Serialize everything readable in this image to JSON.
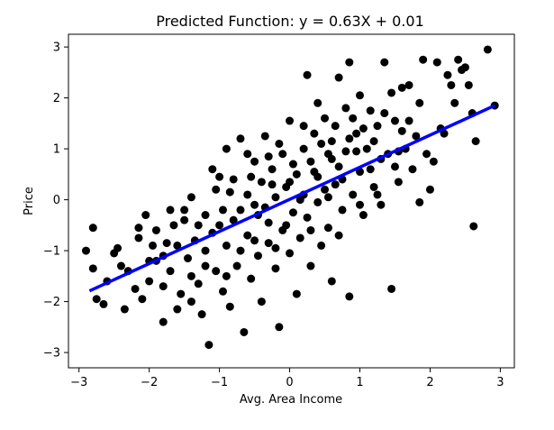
{
  "chart_data": {
    "type": "scatter",
    "title": "Predicted Function: y = 0.63X + 0.01",
    "xlabel": "Avg. Area Income",
    "ylabel": "Price",
    "xlim": [
      -3.15,
      3.2
    ],
    "ylim": [
      -3.3,
      3.25
    ],
    "xticks": [
      -3,
      -2,
      -1,
      0,
      1,
      2,
      3
    ],
    "yticks": [
      -3,
      -2,
      -1,
      0,
      1,
      2,
      3
    ],
    "grid": false,
    "colors": {
      "points": "#000000",
      "line": "#0000ff"
    },
    "regression": {
      "slope": 0.63,
      "intercept": 0.01,
      "x_range": [
        -2.85,
        2.92
      ]
    },
    "series": [
      {
        "kind": "scatter",
        "points": [
          [
            -2.9,
            -1.0
          ],
          [
            -2.8,
            -1.35
          ],
          [
            -2.8,
            -0.55
          ],
          [
            -2.75,
            -1.95
          ],
          [
            -2.65,
            -2.05
          ],
          [
            -2.6,
            -1.6
          ],
          [
            -2.5,
            -1.05
          ],
          [
            -2.45,
            -0.95
          ],
          [
            -2.35,
            -2.15
          ],
          [
            -2.3,
            -1.4
          ],
          [
            -2.2,
            -1.75
          ],
          [
            -2.15,
            -0.55
          ],
          [
            -2.15,
            -0.75
          ],
          [
            -2.1,
            -1.95
          ],
          [
            -2.05,
            -0.3
          ],
          [
            -2.0,
            -1.6
          ],
          [
            -1.95,
            -0.9
          ],
          [
            -1.9,
            -1.2
          ],
          [
            -1.9,
            -0.6
          ],
          [
            -1.8,
            -1.7
          ],
          [
            -1.8,
            -2.4
          ],
          [
            -1.75,
            -0.85
          ],
          [
            -1.7,
            -1.4
          ],
          [
            -1.65,
            -0.5
          ],
          [
            -1.6,
            -2.15
          ],
          [
            -1.55,
            -1.85
          ],
          [
            -1.5,
            -0.4
          ],
          [
            -1.45,
            -1.15
          ],
          [
            -1.4,
            -2.0
          ],
          [
            -1.4,
            0.05
          ],
          [
            -1.35,
            -0.8
          ],
          [
            -1.3,
            -1.65
          ],
          [
            -1.25,
            -2.25
          ],
          [
            -1.2,
            -0.3
          ],
          [
            -1.2,
            -1.0
          ],
          [
            -1.15,
            -2.85
          ],
          [
            -1.1,
            0.6
          ],
          [
            -1.05,
            -1.4
          ],
          [
            -1.05,
            0.2
          ],
          [
            -1.0,
            -0.5
          ],
          [
            -0.95,
            -1.8
          ],
          [
            -0.9,
            -0.9
          ],
          [
            -0.9,
            1.0
          ],
          [
            -0.85,
            -2.1
          ],
          [
            -0.8,
            0.4
          ],
          [
            -0.75,
            -1.3
          ],
          [
            -0.7,
            -0.2
          ],
          [
            -0.7,
            1.2
          ],
          [
            -0.65,
            -2.6
          ],
          [
            -0.6,
            0.1
          ],
          [
            -0.6,
            -0.7
          ],
          [
            -0.55,
            -1.55
          ],
          [
            -0.5,
            0.75
          ],
          [
            -0.5,
            -0.1
          ],
          [
            -0.45,
            -1.1
          ],
          [
            -0.4,
            0.35
          ],
          [
            -0.4,
            -2.0
          ],
          [
            -0.35,
            1.25
          ],
          [
            -0.3,
            -0.45
          ],
          [
            -0.3,
            -0.85
          ],
          [
            -0.25,
            0.6
          ],
          [
            -0.2,
            -1.35
          ],
          [
            -0.2,
            0.05
          ],
          [
            -0.15,
            -2.5
          ],
          [
            -0.1,
            0.9
          ],
          [
            -0.1,
            -0.6
          ],
          [
            -0.05,
            0.25
          ],
          [
            0.0,
            -1.05
          ],
          [
            0.0,
            1.55
          ],
          [
            0.05,
            -0.25
          ],
          [
            0.1,
            0.5
          ],
          [
            0.1,
            -1.85
          ],
          [
            0.15,
            -0.75
          ],
          [
            0.2,
            1.0
          ],
          [
            0.2,
            0.1
          ],
          [
            0.25,
            2.45
          ],
          [
            0.25,
            -0.35
          ],
          [
            0.3,
            0.75
          ],
          [
            0.3,
            -1.3
          ],
          [
            0.35,
            1.3
          ],
          [
            0.4,
            -0.05
          ],
          [
            0.4,
            0.45
          ],
          [
            0.45,
            -0.9
          ],
          [
            0.5,
            1.6
          ],
          [
            0.5,
            0.2
          ],
          [
            0.55,
            0.9
          ],
          [
            0.55,
            -0.55
          ],
          [
            0.6,
            1.15
          ],
          [
            0.6,
            -1.6
          ],
          [
            0.65,
            0.3
          ],
          [
            0.7,
            2.4
          ],
          [
            0.7,
            0.65
          ],
          [
            0.75,
            -0.2
          ],
          [
            0.8,
            1.8
          ],
          [
            0.8,
            0.95
          ],
          [
            0.85,
            2.7
          ],
          [
            0.85,
            -1.9
          ],
          [
            0.9,
            0.1
          ],
          [
            0.95,
            1.3
          ],
          [
            1.0,
            0.55
          ],
          [
            1.0,
            2.05
          ],
          [
            1.05,
            -0.3
          ],
          [
            1.1,
            1.0
          ],
          [
            1.15,
            1.75
          ],
          [
            1.2,
            0.25
          ],
          [
            1.25,
            1.45
          ],
          [
            1.3,
            -0.1
          ],
          [
            1.35,
            2.7
          ],
          [
            1.4,
            0.9
          ],
          [
            1.45,
            -1.75
          ],
          [
            1.5,
            1.55
          ],
          [
            1.55,
            0.35
          ],
          [
            1.6,
            2.2
          ],
          [
            1.65,
            1.0
          ],
          [
            1.7,
            2.25
          ],
          [
            1.75,
            0.6
          ],
          [
            1.8,
            1.25
          ],
          [
            1.85,
            -0.05
          ],
          [
            1.9,
            2.75
          ],
          [
            1.95,
            0.9
          ],
          [
            2.0,
            0.2
          ],
          [
            2.05,
            0.75
          ],
          [
            2.1,
            2.7
          ],
          [
            2.15,
            1.4
          ],
          [
            2.2,
            1.3
          ],
          [
            2.25,
            2.45
          ],
          [
            2.3,
            2.25
          ],
          [
            2.35,
            1.9
          ],
          [
            2.4,
            2.75
          ],
          [
            2.45,
            2.55
          ],
          [
            2.5,
            2.6
          ],
          [
            2.55,
            2.25
          ],
          [
            2.6,
            1.7
          ],
          [
            2.62,
            -0.52
          ],
          [
            2.65,
            1.15
          ],
          [
            2.82,
            2.95
          ],
          [
            2.92,
            1.85
          ],
          [
            -1.6,
            -0.9
          ],
          [
            -1.3,
            -0.5
          ],
          [
            -0.95,
            -0.2
          ],
          [
            -0.7,
            -1.0
          ],
          [
            -0.45,
            -0.3
          ],
          [
            -0.25,
            0.3
          ],
          [
            0.05,
            0.7
          ],
          [
            0.35,
            0.55
          ],
          [
            0.65,
            1.45
          ],
          [
            0.9,
            1.6
          ],
          [
            1.2,
            1.15
          ],
          [
            1.5,
            0.65
          ],
          [
            -1.8,
            -1.1
          ],
          [
            -1.5,
            -0.2
          ],
          [
            -1.1,
            -0.65
          ],
          [
            -0.85,
            0.15
          ],
          [
            -0.55,
            0.45
          ],
          [
            -0.35,
            -0.15
          ],
          [
            -0.15,
            1.1
          ],
          [
            0.15,
            0.0
          ],
          [
            0.45,
            1.1
          ],
          [
            0.75,
            0.4
          ],
          [
            1.05,
            1.4
          ],
          [
            1.3,
            0.8
          ],
          [
            1.6,
            1.35
          ],
          [
            -2.0,
            -1.2
          ],
          [
            -1.2,
            -1.3
          ],
          [
            -0.8,
            -0.4
          ],
          [
            -0.5,
            -0.8
          ],
          [
            0.0,
            0.35
          ],
          [
            0.3,
            -0.6
          ],
          [
            0.6,
            0.8
          ],
          [
            0.95,
            0.95
          ],
          [
            1.25,
            0.1
          ],
          [
            1.7,
            1.55
          ],
          [
            -1.4,
            -1.5
          ],
          [
            -1.0,
            0.45
          ],
          [
            -0.6,
            0.9
          ],
          [
            -0.2,
            -0.95
          ],
          [
            0.2,
            1.45
          ],
          [
            0.55,
            0.05
          ],
          [
            0.85,
            1.2
          ],
          [
            1.15,
            0.6
          ],
          [
            1.45,
            2.1
          ],
          [
            1.85,
            1.9
          ],
          [
            -2.4,
            -1.3
          ],
          [
            -1.7,
            -0.2
          ],
          [
            -0.3,
            0.85
          ],
          [
            0.4,
            1.9
          ],
          [
            1.0,
            -0.1
          ],
          [
            1.35,
            1.7
          ],
          [
            -0.9,
            -1.5
          ],
          [
            -0.05,
            -0.5
          ],
          [
            0.7,
            -0.7
          ],
          [
            1.55,
            0.95
          ]
        ]
      },
      {
        "kind": "line",
        "points": [
          [
            -2.85,
            -1.79
          ],
          [
            2.92,
            1.85
          ]
        ]
      }
    ]
  }
}
